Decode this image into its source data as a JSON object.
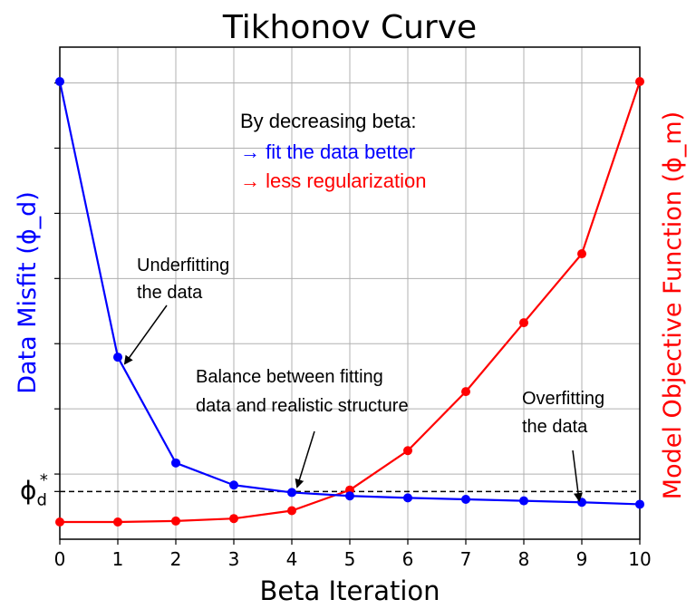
{
  "chart_data": {
    "type": "line",
    "title": "Tikhonov Curve",
    "xlabel": "Beta Iteration",
    "ylabel_left": "Data Misfit (ϕ_d)",
    "ylabel_right": "Model Objective Function (ϕ_m)",
    "x": [
      0,
      1,
      2,
      3,
      4,
      5,
      6,
      7,
      8,
      9,
      10
    ],
    "xlim": [
      0,
      10
    ],
    "xticks": [
      "0",
      "1",
      "2",
      "3",
      "4",
      "5",
      "6",
      "7",
      "8",
      "9",
      "10"
    ],
    "grid": true,
    "series": [
      {
        "name": "Data Misfit (ϕ_d)",
        "axis": "left",
        "color": "#0000ff",
        "values": [
          0.93,
          0.37,
          0.155,
          0.11,
          0.095,
          0.088,
          0.084,
          0.081,
          0.078,
          0.075,
          0.071
        ]
      },
      {
        "name": "Model Objective Function (ϕ_m)",
        "axis": "right",
        "color": "#ff0000",
        "values": [
          0.035,
          0.035,
          0.037,
          0.042,
          0.058,
          0.1,
          0.18,
          0.3,
          0.44,
          0.58,
          0.93
        ]
      }
    ],
    "ylim": [
      0,
      1
    ],
    "reference_line": {
      "label_base": "ϕ",
      "label_sub": "d",
      "label_sup": "*",
      "value": 0.097,
      "style": "dashed",
      "color": "#000000"
    },
    "text_block": {
      "line1": "By decreasing beta:",
      "line2": "→ fit the data better",
      "line3": "→ less regularization",
      "line2_color": "#0000ff",
      "line3_color": "#ff0000"
    },
    "annotations": [
      {
        "line1": "Underfitting",
        "line2": "the data",
        "target_x": 1
      },
      {
        "line1": "Balance between fitting",
        "line2": "data and realistic structure",
        "target_x": 4
      },
      {
        "line1": "Overfitting",
        "line2": "the data",
        "target_x": 9
      }
    ]
  }
}
